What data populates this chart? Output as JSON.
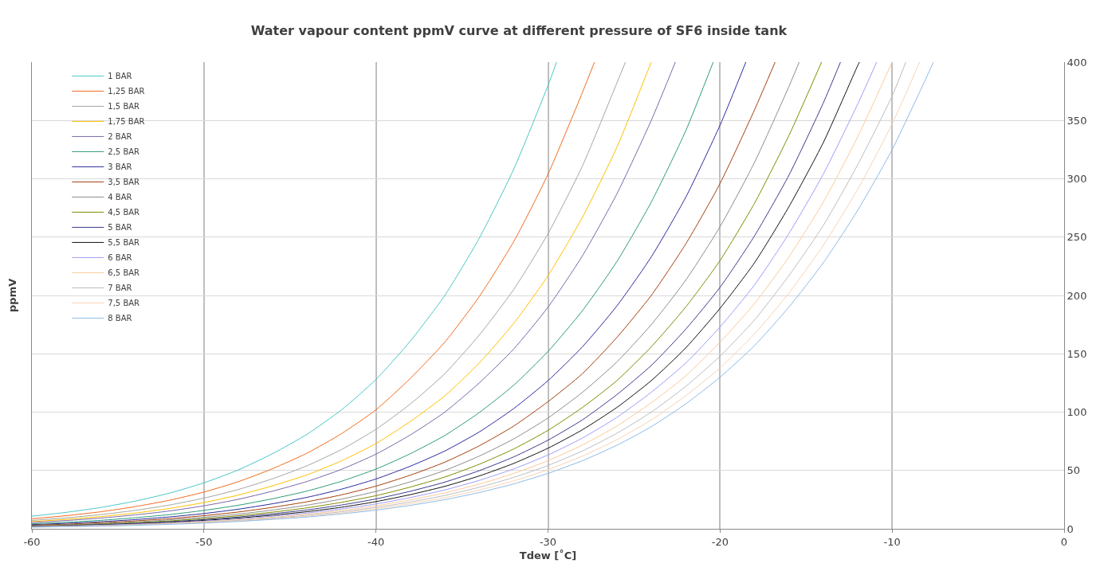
{
  "chart_data": {
    "type": "line",
    "title": "Water vapour content ppmV curve at different pressure of SF6 inside tank",
    "xlabel": "Tdew [˚C]",
    "ylabel": "ppmV",
    "xlim": [
      -60,
      0
    ],
    "xticks": [
      -60,
      -50,
      -40,
      -30,
      -20,
      -10,
      0
    ],
    "ylim": [
      0,
      400
    ],
    "yticks": [
      0,
      50,
      100,
      150,
      200,
      250,
      300,
      350,
      400
    ],
    "grid": true,
    "legend": "top left",
    "marker": "none",
    "line_style": "solid",
    "series": [
      {
        "name": "1 BAR",
        "color": "#4bc6c6",
        "x": [
          -60,
          -58,
          -56,
          -54,
          -52,
          -50,
          -48,
          -46,
          -44,
          -42,
          -40,
          -38,
          -36,
          -34,
          -32,
          -30,
          -29.5
        ],
        "values": [
          10.8,
          14.1,
          18.3,
          23.7,
          30.6,
          39.4,
          50.5,
          64.5,
          81.1,
          102,
          128,
          161,
          200,
          249,
          308,
          380,
          400
        ]
      },
      {
        "name": "1,25 BAR",
        "color": "#f26b1d",
        "x": [
          -60,
          -58,
          -56,
          -54,
          -52,
          -50,
          -48,
          -46,
          -44,
          -42,
          -40,
          -38,
          -36,
          -34,
          -32,
          -30,
          -28,
          -27.3
        ],
        "values": [
          8.6,
          11.3,
          14.6,
          19.0,
          24.5,
          31.5,
          40.4,
          51.6,
          64.9,
          81.6,
          102,
          129,
          160,
          199,
          246,
          304,
          374,
          400
        ]
      },
      {
        "name": "1,5 BAR",
        "color": "#a5a5a5",
        "x": [
          -60,
          -58,
          -56,
          -54,
          -52,
          -50,
          -48,
          -46,
          -44,
          -42,
          -40,
          -38,
          -36,
          -34,
          -32,
          -30,
          -28,
          -26,
          -25.5
        ],
        "values": [
          7.2,
          9.4,
          12.2,
          15.8,
          20.4,
          26.3,
          33.7,
          43.0,
          54.1,
          68.0,
          85.3,
          107,
          133,
          166,
          205,
          253,
          311,
          382,
          400
        ]
      },
      {
        "name": "1,75 BAR",
        "color": "#ffc000",
        "x": [
          -60,
          -58,
          -56,
          -54,
          -52,
          -50,
          -48,
          -46,
          -44,
          -42,
          -40,
          -38,
          -36,
          -34,
          -32,
          -30,
          -28,
          -26,
          -24
        ],
        "values": [
          6.2,
          8.1,
          10.5,
          13.5,
          17.5,
          22.5,
          28.9,
          36.9,
          46.3,
          58.3,
          73.1,
          92.0,
          114,
          142,
          176,
          217,
          267,
          327,
          400
        ]
      },
      {
        "name": "2 BAR",
        "color": "#7a68a8",
        "x": [
          -60,
          -58,
          -56,
          -54,
          -52,
          -50,
          -48,
          -46,
          -44,
          -42,
          -40,
          -38,
          -36,
          -34,
          -32,
          -30,
          -28,
          -26,
          -24,
          -22.6
        ],
        "values": [
          5.4,
          7.1,
          9.2,
          11.9,
          15.3,
          19.7,
          25.3,
          32.3,
          40.6,
          51.0,
          64.0,
          80.5,
          100,
          125,
          154,
          190,
          234,
          287,
          350,
          400
        ]
      },
      {
        "name": "2,5 BAR",
        "color": "#2e9c78",
        "x": [
          -60,
          -58,
          -56,
          -54,
          -52,
          -50,
          -48,
          -46,
          -44,
          -42,
          -40,
          -38,
          -36,
          -34,
          -32,
          -30,
          -28,
          -26,
          -24,
          -22,
          -20.4
        ],
        "values": [
          4.3,
          5.6,
          7.3,
          9.5,
          12.2,
          15.8,
          20.2,
          25.8,
          32.4,
          40.8,
          51.2,
          64.4,
          80.0,
          99.6,
          123,
          152,
          187,
          229,
          280,
          341,
          400
        ]
      },
      {
        "name": "3 BAR",
        "color": "#2b2b9e",
        "x": [
          -60,
          -58,
          -56,
          -54,
          -52,
          -50,
          -48,
          -46,
          -44,
          -42,
          -40,
          -38,
          -36,
          -34,
          -32,
          -30,
          -28,
          -26,
          -24,
          -22,
          -20,
          -18.5
        ],
        "values": [
          3.6,
          4.7,
          6.1,
          7.9,
          10.2,
          13.1,
          16.8,
          21.5,
          27.0,
          34.0,
          42.7,
          53.7,
          66.7,
          83.0,
          103,
          127,
          156,
          191,
          233,
          284,
          346,
          400
        ]
      },
      {
        "name": "3,5 BAR",
        "color": "#a3400c",
        "x": [
          -60,
          -58,
          -56,
          -54,
          -52,
          -50,
          -48,
          -46,
          -44,
          -42,
          -40,
          -38,
          -36,
          -34,
          -32,
          -30,
          -28,
          -26,
          -24,
          -22,
          -20,
          -18,
          -16.8
        ],
        "values": [
          3.1,
          4.0,
          5.2,
          6.8,
          8.7,
          11.3,
          14.4,
          18.4,
          23.2,
          29.1,
          36.6,
          46.0,
          57.1,
          71.1,
          88.0,
          109,
          133,
          164,
          200,
          244,
          296,
          359,
          400
        ]
      },
      {
        "name": "4 BAR",
        "color": "#8c8c8c",
        "x": [
          -60,
          -58,
          -56,
          -54,
          -52,
          -50,
          -48,
          -46,
          -44,
          -42,
          -40,
          -38,
          -36,
          -34,
          -32,
          -30,
          -28,
          -26,
          -24,
          -22,
          -20,
          -18,
          -16,
          -15.4
        ],
        "values": [
          2.7,
          3.5,
          4.6,
          5.9,
          7.7,
          9.9,
          12.6,
          16.1,
          20.3,
          25.5,
          32.0,
          40.3,
          50.0,
          62.3,
          77.0,
          95.0,
          117,
          143,
          175,
          213,
          259,
          314,
          379,
          400
        ]
      },
      {
        "name": "4,5 BAR",
        "color": "#7f8c00",
        "x": [
          -60,
          -58,
          -56,
          -54,
          -52,
          -50,
          -48,
          -46,
          -44,
          -42,
          -40,
          -38,
          -36,
          -34,
          -32,
          -30,
          -28,
          -26,
          -24,
          -22,
          -20,
          -18,
          -16,
          -14.1
        ],
        "values": [
          2.4,
          3.1,
          4.1,
          5.3,
          6.8,
          8.8,
          11.2,
          14.3,
          18.0,
          22.7,
          28.4,
          35.8,
          44.4,
          55.3,
          68.4,
          84.4,
          104,
          127,
          156,
          190,
          230,
          279,
          337,
          400
        ]
      },
      {
        "name": "5 BAR",
        "color": "#3b3b8c",
        "x": [
          -60,
          -58,
          -56,
          -54,
          -52,
          -50,
          -48,
          -46,
          -44,
          -42,
          -40,
          -38,
          -36,
          -34,
          -32,
          -30,
          -28,
          -26,
          -24,
          -22,
          -20,
          -18,
          -16,
          -14,
          -13.0
        ],
        "values": [
          2.2,
          2.8,
          3.7,
          4.7,
          6.1,
          7.9,
          10.1,
          12.9,
          16.2,
          20.4,
          25.6,
          32.2,
          40.0,
          49.8,
          61.6,
          76.0,
          93.4,
          115,
          140,
          171,
          207,
          251,
          303,
          365,
          400
        ]
      },
      {
        "name": "5,5 BAR",
        "color": "#111111",
        "x": [
          -60,
          -58,
          -56,
          -54,
          -52,
          -50,
          -48,
          -46,
          -44,
          -42,
          -40,
          -38,
          -36,
          -34,
          -32,
          -30,
          -28,
          -26,
          -24,
          -22,
          -20,
          -18,
          -16,
          -14,
          -12,
          -11.9
        ],
        "values": [
          2.0,
          2.6,
          3.3,
          4.3,
          5.6,
          7.2,
          9.2,
          11.7,
          14.7,
          18.5,
          23.3,
          29.3,
          36.4,
          45.3,
          56.0,
          69.1,
          84.9,
          104,
          127,
          155,
          189,
          228,
          276,
          331,
          397,
          400
        ]
      },
      {
        "name": "6 BAR",
        "color": "#9d9dfa",
        "x": [
          -60,
          -58,
          -56,
          -54,
          -52,
          -50,
          -48,
          -46,
          -44,
          -42,
          -40,
          -38,
          -36,
          -34,
          -32,
          -30,
          -28,
          -26,
          -24,
          -22,
          -20,
          -18,
          -16,
          -14,
          -12,
          -10.9
        ],
        "values": [
          1.8,
          2.4,
          3.1,
          4.0,
          5.1,
          6.6,
          8.4,
          10.8,
          13.5,
          17.0,
          21.3,
          26.8,
          33.3,
          41.5,
          51.3,
          63.3,
          77.8,
          95.5,
          117,
          142,
          173,
          209,
          253,
          304,
          364,
          400
        ]
      },
      {
        "name": "6,5 BAR",
        "color": "#fcc99a",
        "x": [
          -60,
          -58,
          -56,
          -54,
          -52,
          -50,
          -48,
          -46,
          -44,
          -42,
          -40,
          -38,
          -36,
          -34,
          -32,
          -30,
          -28,
          -26,
          -24,
          -22,
          -20,
          -18,
          -16,
          -14,
          -12,
          -10
        ],
        "values": [
          1.7,
          2.2,
          2.8,
          3.6,
          4.7,
          6.1,
          7.8,
          9.9,
          12.5,
          15.7,
          19.7,
          24.8,
          30.8,
          38.3,
          47.4,
          58.4,
          71.8,
          88.1,
          108,
          131,
          160,
          193,
          233,
          280,
          336,
          400
        ]
      },
      {
        "name": "7 BAR",
        "color": "#bdbdbd",
        "x": [
          -60,
          -58,
          -56,
          -54,
          -52,
          -50,
          -48,
          -46,
          -44,
          -42,
          -40,
          -38,
          -36,
          -34,
          -32,
          -30,
          -28,
          -26,
          -24,
          -22,
          -20,
          -18,
          -16,
          -14,
          -12,
          -10,
          -9.2
        ],
        "values": [
          1.5,
          2.0,
          2.6,
          3.4,
          4.4,
          5.6,
          7.2,
          9.2,
          11.6,
          14.6,
          18.3,
          23.0,
          28.6,
          35.6,
          44.0,
          54.3,
          66.7,
          81.9,
          100,
          122,
          148,
          179,
          217,
          260,
          312,
          371,
          400
        ]
      },
      {
        "name": "7,5 BAR",
        "color": "#f7d3b5",
        "x": [
          -60,
          -58,
          -56,
          -54,
          -52,
          -50,
          -48,
          -46,
          -44,
          -42,
          -40,
          -38,
          -36,
          -34,
          -32,
          -30,
          -28,
          -26,
          -24,
          -22,
          -20,
          -18,
          -16,
          -14,
          -12,
          -10,
          -8.4
        ],
        "values": [
          1.4,
          1.9,
          2.4,
          3.2,
          4.1,
          5.3,
          6.7,
          8.6,
          10.8,
          13.6,
          17.1,
          21.5,
          26.7,
          33.2,
          41.1,
          50.7,
          62.3,
          76.4,
          93.3,
          114,
          138,
          167,
          202,
          243,
          291,
          347,
          400
        ]
      },
      {
        "name": "8 BAR",
        "color": "#8cbbe8",
        "x": [
          -60,
          -58,
          -56,
          -54,
          -52,
          -50,
          -48,
          -46,
          -44,
          -42,
          -40,
          -38,
          -36,
          -34,
          -32,
          -30,
          -28,
          -26,
          -24,
          -22,
          -20,
          -18,
          -16,
          -14,
          -12,
          -10,
          -8,
          -7.6
        ],
        "values": [
          1.4,
          1.8,
          2.3,
          3.0,
          3.8,
          4.9,
          6.3,
          8.1,
          10.1,
          12.8,
          16.0,
          20.1,
          25.0,
          31.1,
          38.5,
          47.5,
          58.4,
          71.6,
          87.5,
          107,
          130,
          157,
          190,
          228,
          273,
          325,
          387,
          400
        ]
      }
    ]
  }
}
